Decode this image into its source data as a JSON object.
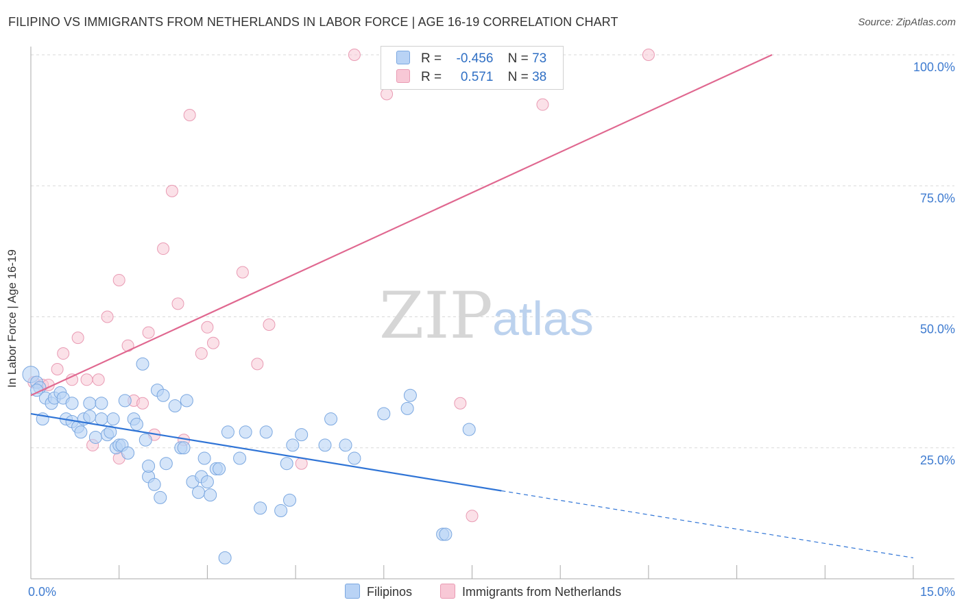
{
  "header": {
    "title": "FILIPINO VS IMMIGRANTS FROM NETHERLANDS IN LABOR FORCE | AGE 16-19 CORRELATION CHART",
    "source": "Source: ZipAtlas.com"
  },
  "watermark": {
    "part1": "ZIP",
    "part2": "atlas"
  },
  "legend_top": {
    "rows": [
      {
        "r_label": "R =",
        "r_value": "-0.456",
        "n_label": "N =",
        "n_value": "73"
      },
      {
        "r_label": "R =",
        "r_value": "0.571",
        "n_label": "N =",
        "n_value": "38"
      }
    ]
  },
  "legend_bottom": {
    "items": [
      {
        "label": "Filipinos"
      },
      {
        "label": "Immigrants from Netherlands"
      }
    ]
  },
  "colors": {
    "blue_fill": "#b9d3f5",
    "blue_stroke": "#7aa7e0",
    "blue_line": "#2f74d6",
    "pink_fill": "#f8c8d6",
    "pink_stroke": "#e99ab3",
    "pink_line": "#e06890",
    "grid": "#d8d8d8",
    "tick_label": "#3e7bd0"
  },
  "chart_data": {
    "type": "scatter",
    "title": "FILIPINO VS IMMIGRANTS FROM NETHERLANDS IN LABOR FORCE | AGE 16-19 CORRELATION CHART",
    "xlabel": "",
    "ylabel": "In Labor Force | Age 16-19",
    "xlim": [
      0,
      15
    ],
    "ylim": [
      0,
      100
    ],
    "x_tick_labels": [
      {
        "value": 0,
        "label": "0.0%"
      },
      {
        "value": 15,
        "label": "15.0%"
      }
    ],
    "y_tick_labels": [
      {
        "value": 25,
        "label": "25.0%"
      },
      {
        "value": 50,
        "label": "50.0%"
      },
      {
        "value": 75,
        "label": "75.0%"
      },
      {
        "value": 100,
        "label": "100.0%"
      }
    ],
    "grid": "horizontal dashed",
    "legend_position": "bottom",
    "series": [
      {
        "name": "Filipinos",
        "R": -0.456,
        "N": 73,
        "trend": {
          "x": [
            0,
            8.0
          ],
          "y": [
            31.5,
            16.8
          ],
          "dashed_to": [
            15,
            4.0
          ]
        },
        "points": [
          [
            0.0,
            39.0
          ],
          [
            0.1,
            37.5
          ],
          [
            0.15,
            36.5
          ],
          [
            0.2,
            30.5
          ],
          [
            0.25,
            34.5
          ],
          [
            0.35,
            33.5
          ],
          [
            0.4,
            34.5
          ],
          [
            0.5,
            35.5
          ],
          [
            0.55,
            34.5
          ],
          [
            0.6,
            30.5
          ],
          [
            0.7,
            33.5
          ],
          [
            0.7,
            30.0
          ],
          [
            0.8,
            29.0
          ],
          [
            0.85,
            28.0
          ],
          [
            0.9,
            30.5
          ],
          [
            1.0,
            31.0
          ],
          [
            1.0,
            33.5
          ],
          [
            1.1,
            27.0
          ],
          [
            1.2,
            33.5
          ],
          [
            1.2,
            30.5
          ],
          [
            1.3,
            27.5
          ],
          [
            1.35,
            28.0
          ],
          [
            1.4,
            30.5
          ],
          [
            1.45,
            25.0
          ],
          [
            1.5,
            25.5
          ],
          [
            1.55,
            25.5
          ],
          [
            1.6,
            34.0
          ],
          [
            1.65,
            24.0
          ],
          [
            1.75,
            30.5
          ],
          [
            1.8,
            29.5
          ],
          [
            1.9,
            41.0
          ],
          [
            1.95,
            26.5
          ],
          [
            2.0,
            19.5
          ],
          [
            2.0,
            21.5
          ],
          [
            2.1,
            18.0
          ],
          [
            2.15,
            36.0
          ],
          [
            2.2,
            15.5
          ],
          [
            2.25,
            35.0
          ],
          [
            2.3,
            22.0
          ],
          [
            2.45,
            33.0
          ],
          [
            2.55,
            25.0
          ],
          [
            2.6,
            25.0
          ],
          [
            2.65,
            34.0
          ],
          [
            2.75,
            18.5
          ],
          [
            2.85,
            16.5
          ],
          [
            2.9,
            19.5
          ],
          [
            2.95,
            23.0
          ],
          [
            3.0,
            18.5
          ],
          [
            3.05,
            16.0
          ],
          [
            3.15,
            21.0
          ],
          [
            3.2,
            21.0
          ],
          [
            3.3,
            4.0
          ],
          [
            3.35,
            28.0
          ],
          [
            3.55,
            23.0
          ],
          [
            3.65,
            28.0
          ],
          [
            3.9,
            13.5
          ],
          [
            4.0,
            28.0
          ],
          [
            4.25,
            13.0
          ],
          [
            4.35,
            22.0
          ],
          [
            4.4,
            15.0
          ],
          [
            4.45,
            25.5
          ],
          [
            4.6,
            27.5
          ],
          [
            5.0,
            25.5
          ],
          [
            5.1,
            30.5
          ],
          [
            5.35,
            25.5
          ],
          [
            5.5,
            23.0
          ],
          [
            6.0,
            31.5
          ],
          [
            6.4,
            32.5
          ],
          [
            6.45,
            35.0
          ],
          [
            7.0,
            8.5
          ],
          [
            7.05,
            8.5
          ],
          [
            7.45,
            28.5
          ],
          [
            0.1,
            36.0
          ]
        ]
      },
      {
        "name": "Immigrants from Netherlands",
        "R": 0.571,
        "N": 38,
        "trend": {
          "x": [
            0,
            12.6
          ],
          "y": [
            35.0,
            100.0
          ]
        },
        "points": [
          [
            0.05,
            37.5
          ],
          [
            0.2,
            37.0
          ],
          [
            0.3,
            37.0
          ],
          [
            0.45,
            40.0
          ],
          [
            0.55,
            43.0
          ],
          [
            0.8,
            46.0
          ],
          [
            0.7,
            38.0
          ],
          [
            0.95,
            38.0
          ],
          [
            1.05,
            25.5
          ],
          [
            1.15,
            38.0
          ],
          [
            1.3,
            50.0
          ],
          [
            1.5,
            23.0
          ],
          [
            1.5,
            57.0
          ],
          [
            1.65,
            44.5
          ],
          [
            1.75,
            34.0
          ],
          [
            1.9,
            33.5
          ],
          [
            2.0,
            47.0
          ],
          [
            2.1,
            27.5
          ],
          [
            2.25,
            63.0
          ],
          [
            2.4,
            74.0
          ],
          [
            2.5,
            52.5
          ],
          [
            2.6,
            26.5
          ],
          [
            2.7,
            88.5
          ],
          [
            2.9,
            43.0
          ],
          [
            3.0,
            48.0
          ],
          [
            3.1,
            45.0
          ],
          [
            3.6,
            58.5
          ],
          [
            3.85,
            41.0
          ],
          [
            4.05,
            48.5
          ],
          [
            4.6,
            22.0
          ],
          [
            5.5,
            100.0
          ],
          [
            6.05,
            92.5
          ],
          [
            6.5,
            100.0
          ],
          [
            7.3,
            33.5
          ],
          [
            7.5,
            12.0
          ],
          [
            8.7,
            90.5
          ],
          [
            8.8,
            100.0
          ],
          [
            10.5,
            100.0
          ]
        ]
      }
    ]
  }
}
